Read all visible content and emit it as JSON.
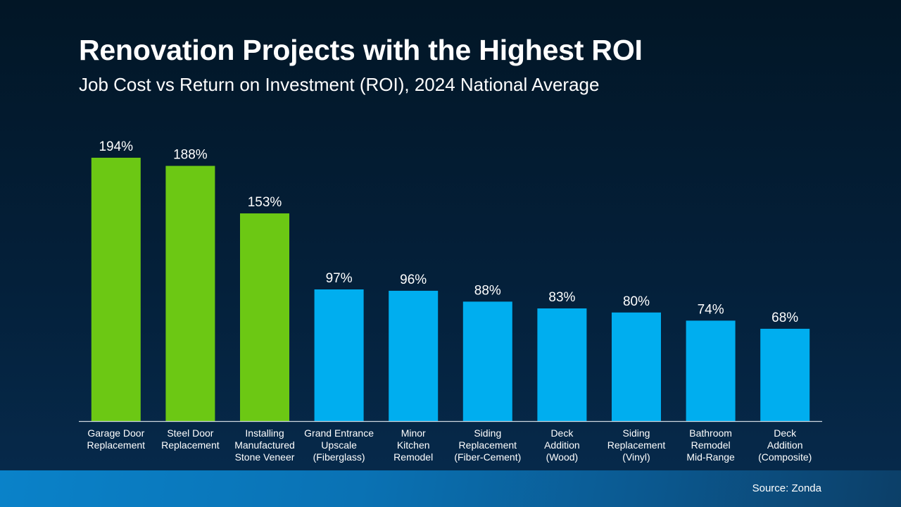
{
  "title": "Renovation Projects with the Highest ROI",
  "subtitle": "Job Cost vs Return on Investment (ROI), 2024 National Average",
  "source": "Source: Zonda",
  "colors": {
    "highlight": "#6cc814",
    "default": "#00aeef",
    "axis": "#d0d8e0"
  },
  "chart_data": {
    "type": "bar",
    "categories": [
      [
        "Garage Door",
        "Replacement"
      ],
      [
        "Steel Door",
        "Replacement"
      ],
      [
        "Installing",
        "Manufactured",
        "Stone Veneer"
      ],
      [
        "Grand Entrance",
        "Upscale",
        "(Fiberglass)"
      ],
      [
        "Minor",
        "Kitchen",
        "Remodel"
      ],
      [
        "Siding",
        "Replacement",
        "(Fiber-Cement)"
      ],
      [
        "Deck",
        "Addition",
        "(Wood)"
      ],
      [
        "Siding",
        "Replacement",
        "(Vinyl)"
      ],
      [
        "Bathroom",
        "Remodel",
        "Mid-Range"
      ],
      [
        "Deck",
        "Addition",
        "(Composite)"
      ]
    ],
    "values": [
      194,
      188,
      153,
      97,
      96,
      88,
      83,
      80,
      74,
      68
    ],
    "data_labels": [
      "194%",
      "188%",
      "153%",
      "97%",
      "96%",
      "88%",
      "83%",
      "80%",
      "74%",
      "68%"
    ],
    "highlighted": [
      true,
      true,
      true,
      false,
      false,
      false,
      false,
      false,
      false,
      false
    ],
    "ylim": [
      0,
      194
    ],
    "unit": "%",
    "grid": false,
    "legend": "none"
  }
}
